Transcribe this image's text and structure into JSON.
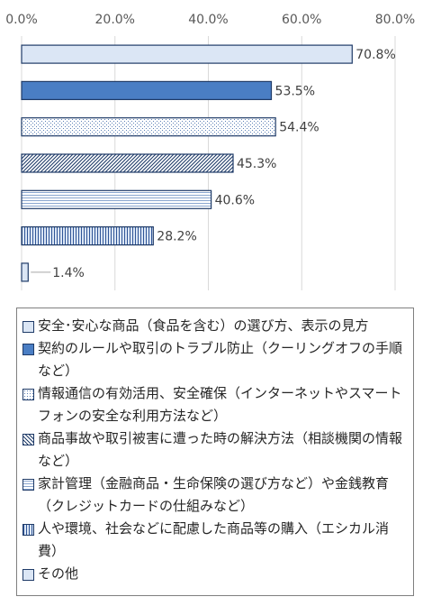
{
  "chart_data": {
    "type": "bar",
    "orientation": "horizontal",
    "xlim": [
      0,
      80
    ],
    "x_ticks": [
      "0.0%",
      "20.0%",
      "40.0%",
      "60.0%",
      "80.0%"
    ],
    "grid": true,
    "legend_position": "bottom",
    "categories": [
      "安全･安心な商品（食品を含む）の選び方、表示の見方",
      "契約のルールや取引のトラブル防止（クーリングオフの手順など）",
      "情報通信の有効活用、安全確保（インターネットやスマートフォンの安全な利用方法など）",
      "商品事故や取引被害に遭った時の解決方法（相談機関の情報など）",
      "家計管理（金融商品・生命保険の選び方など）や金銭教育（クレジットカードの仕組みなど）",
      "人や環境、社会などに配慮した商品等の購入（エシカル消費）",
      "その他"
    ],
    "values": [
      70.8,
      53.5,
      54.4,
      45.3,
      40.6,
      28.2,
      1.4
    ],
    "value_labels": [
      "70.8%",
      "53.5%",
      "54.4%",
      "45.3%",
      "40.6%",
      "28.2%",
      "1.4%"
    ],
    "patterns": [
      "light-fill",
      "solid-blue",
      "dotted",
      "diagonal",
      "horizontal-lines",
      "vertical-lines",
      "light-fill"
    ],
    "colors": {
      "outline": "#1f3b68",
      "light": "#dbe6f5",
      "solid": "#4a7ec4",
      "grid": "#d9d9d9"
    }
  },
  "legend": [
    "安全･安心な商品（食品を含む）の選び方、表示の見方",
    "契約のルールや取引のトラブル防止（クーリングオフの手順など）",
    "情報通信の有効活用、安全確保（インターネットやスマートフォンの安全な利用方法など）",
    "商品事故や取引被害に遭った時の解決方法（相談機関の情報など）",
    "家計管理（金融商品・生命保険の選び方など）や金銭教育（クレジットカードの仕組みなど）",
    "人や環境、社会などに配慮した商品等の購入（エシカル消費）",
    "その他"
  ]
}
